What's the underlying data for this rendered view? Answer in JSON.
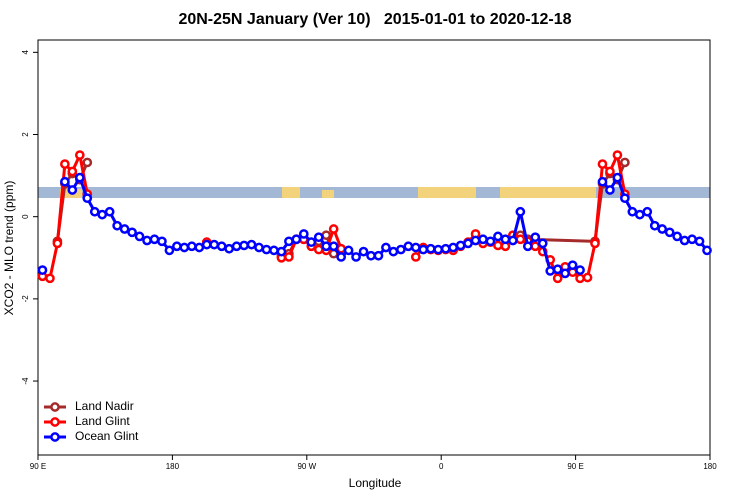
{
  "chart_data": {
    "type": "line",
    "title": "20N-25N January (Ver 10)   2015-01-01 to 2020-12-18",
    "x_label": "Longitude",
    "y_label": "XCO2 - MLO trend (ppm)",
    "xlim": [
      90,
      540
    ],
    "ylim": [
      -5.8,
      4.3
    ],
    "xticks": [
      {
        "value": 90,
        "label": "90 E"
      },
      180,
      {
        "value": 270,
        "label": "90 W"
      },
      {
        "value": 360,
        "label": "0"
      },
      {
        "value": 450,
        "label": "90 E"
      },
      {
        "value": 540,
        "label": "180"
      }
    ],
    "yticks": [
      -4,
      -2,
      0,
      2,
      4
    ],
    "legend": "bottom-left",
    "series": [
      {
        "name": "Land Nadir",
        "color": "#a52a2a",
        "x": [
          103,
          108,
          113,
          118,
          123,
          128,
          253,
          258,
          263,
          268,
          273,
          278,
          283,
          288,
          293,
          408,
          413,
          418,
          463,
          468,
          473,
          478,
          483
        ],
        "values": [
          -0.6,
          0.8,
          1.05,
          0.9,
          1.32,
          null,
          -0.95,
          -0.9,
          -0.55,
          -0.55,
          null,
          -0.6,
          -0.45,
          -0.9,
          null,
          -0.5,
          -0.45,
          -0.55,
          -0.6,
          0.8,
          1.05,
          0.9,
          1.32
        ]
      },
      {
        "name": "Land Glint",
        "color": "#ff0000",
        "x": [
          93,
          98,
          103,
          108,
          113,
          118,
          123,
          128,
          203,
          208,
          253,
          258,
          263,
          268,
          273,
          278,
          283,
          288,
          293,
          298,
          343,
          348,
          353,
          358,
          363,
          368,
          373,
          378,
          383,
          388,
          393,
          398,
          403,
          408,
          413,
          418,
          423,
          428,
          433,
          438,
          443,
          448,
          453,
          458,
          463,
          468,
          473,
          478,
          483
        ],
        "values": [
          -1.45,
          -1.5,
          -0.65,
          1.28,
          1.1,
          1.5,
          0.55,
          null,
          -0.62,
          null,
          -1.0,
          -0.98,
          -0.55,
          -0.55,
          -0.72,
          -0.8,
          -0.82,
          -0.3,
          -0.78,
          null,
          -0.98,
          -0.75,
          -0.8,
          -0.82,
          -0.8,
          -0.82,
          -0.72,
          -0.62,
          -0.42,
          -0.65,
          -0.62,
          -0.7,
          -0.72,
          -0.45,
          -0.55,
          -0.6,
          -0.72,
          -0.85,
          -1.05,
          -1.5,
          -1.22,
          -1.35,
          -1.5,
          -1.48,
          -0.65,
          1.28,
          1.1,
          1.5,
          0.55
        ]
      },
      {
        "name": "Ocean Glint",
        "color": "#0000ff",
        "x": [
          93,
          98,
          108,
          113,
          118,
          123,
          128,
          133,
          138,
          143,
          148,
          153,
          158,
          163,
          168,
          173,
          178,
          183,
          188,
          193,
          198,
          203,
          208,
          213,
          218,
          223,
          228,
          233,
          238,
          243,
          248,
          253,
          258,
          263,
          268,
          273,
          278,
          283,
          288,
          293,
          298,
          303,
          308,
          313,
          318,
          323,
          328,
          333,
          338,
          343,
          348,
          353,
          358,
          363,
          368,
          373,
          378,
          383,
          388,
          393,
          398,
          403,
          408,
          413,
          418,
          423,
          428,
          433,
          438,
          443,
          448,
          453,
          458,
          468,
          473,
          478,
          483,
          488,
          493,
          498,
          503,
          508,
          513,
          518,
          523,
          528,
          533,
          538
        ],
        "values": [
          -1.3,
          null,
          0.85,
          0.65,
          0.95,
          0.45,
          0.12,
          0.05,
          0.12,
          -0.22,
          -0.3,
          -0.38,
          -0.48,
          -0.58,
          -0.55,
          -0.6,
          -0.82,
          -0.72,
          -0.75,
          -0.72,
          -0.75,
          -0.68,
          -0.68,
          -0.72,
          -0.78,
          -0.72,
          -0.7,
          -0.68,
          -0.75,
          -0.8,
          -0.82,
          -0.85,
          -0.6,
          -0.55,
          -0.42,
          -0.62,
          -0.5,
          -0.72,
          -0.72,
          -0.98,
          -0.82,
          -0.98,
          -0.85,
          -0.95,
          -0.95,
          -0.75,
          -0.85,
          -0.8,
          -0.72,
          -0.75,
          -0.8,
          -0.78,
          -0.8,
          -0.78,
          -0.75,
          -0.7,
          -0.65,
          -0.58,
          -0.55,
          -0.6,
          -0.48,
          -0.55,
          -0.58,
          0.12,
          -0.72,
          -0.5,
          -0.65,
          -1.32,
          -1.28,
          -1.38,
          -1.18,
          -1.3,
          null,
          0.85,
          0.65,
          0.95,
          0.45,
          0.12,
          0.05,
          0.12,
          -0.22,
          -0.3,
          -0.38,
          -0.48,
          -0.58,
          -0.55,
          -0.6,
          -0.82
        ]
      }
    ]
  }
}
